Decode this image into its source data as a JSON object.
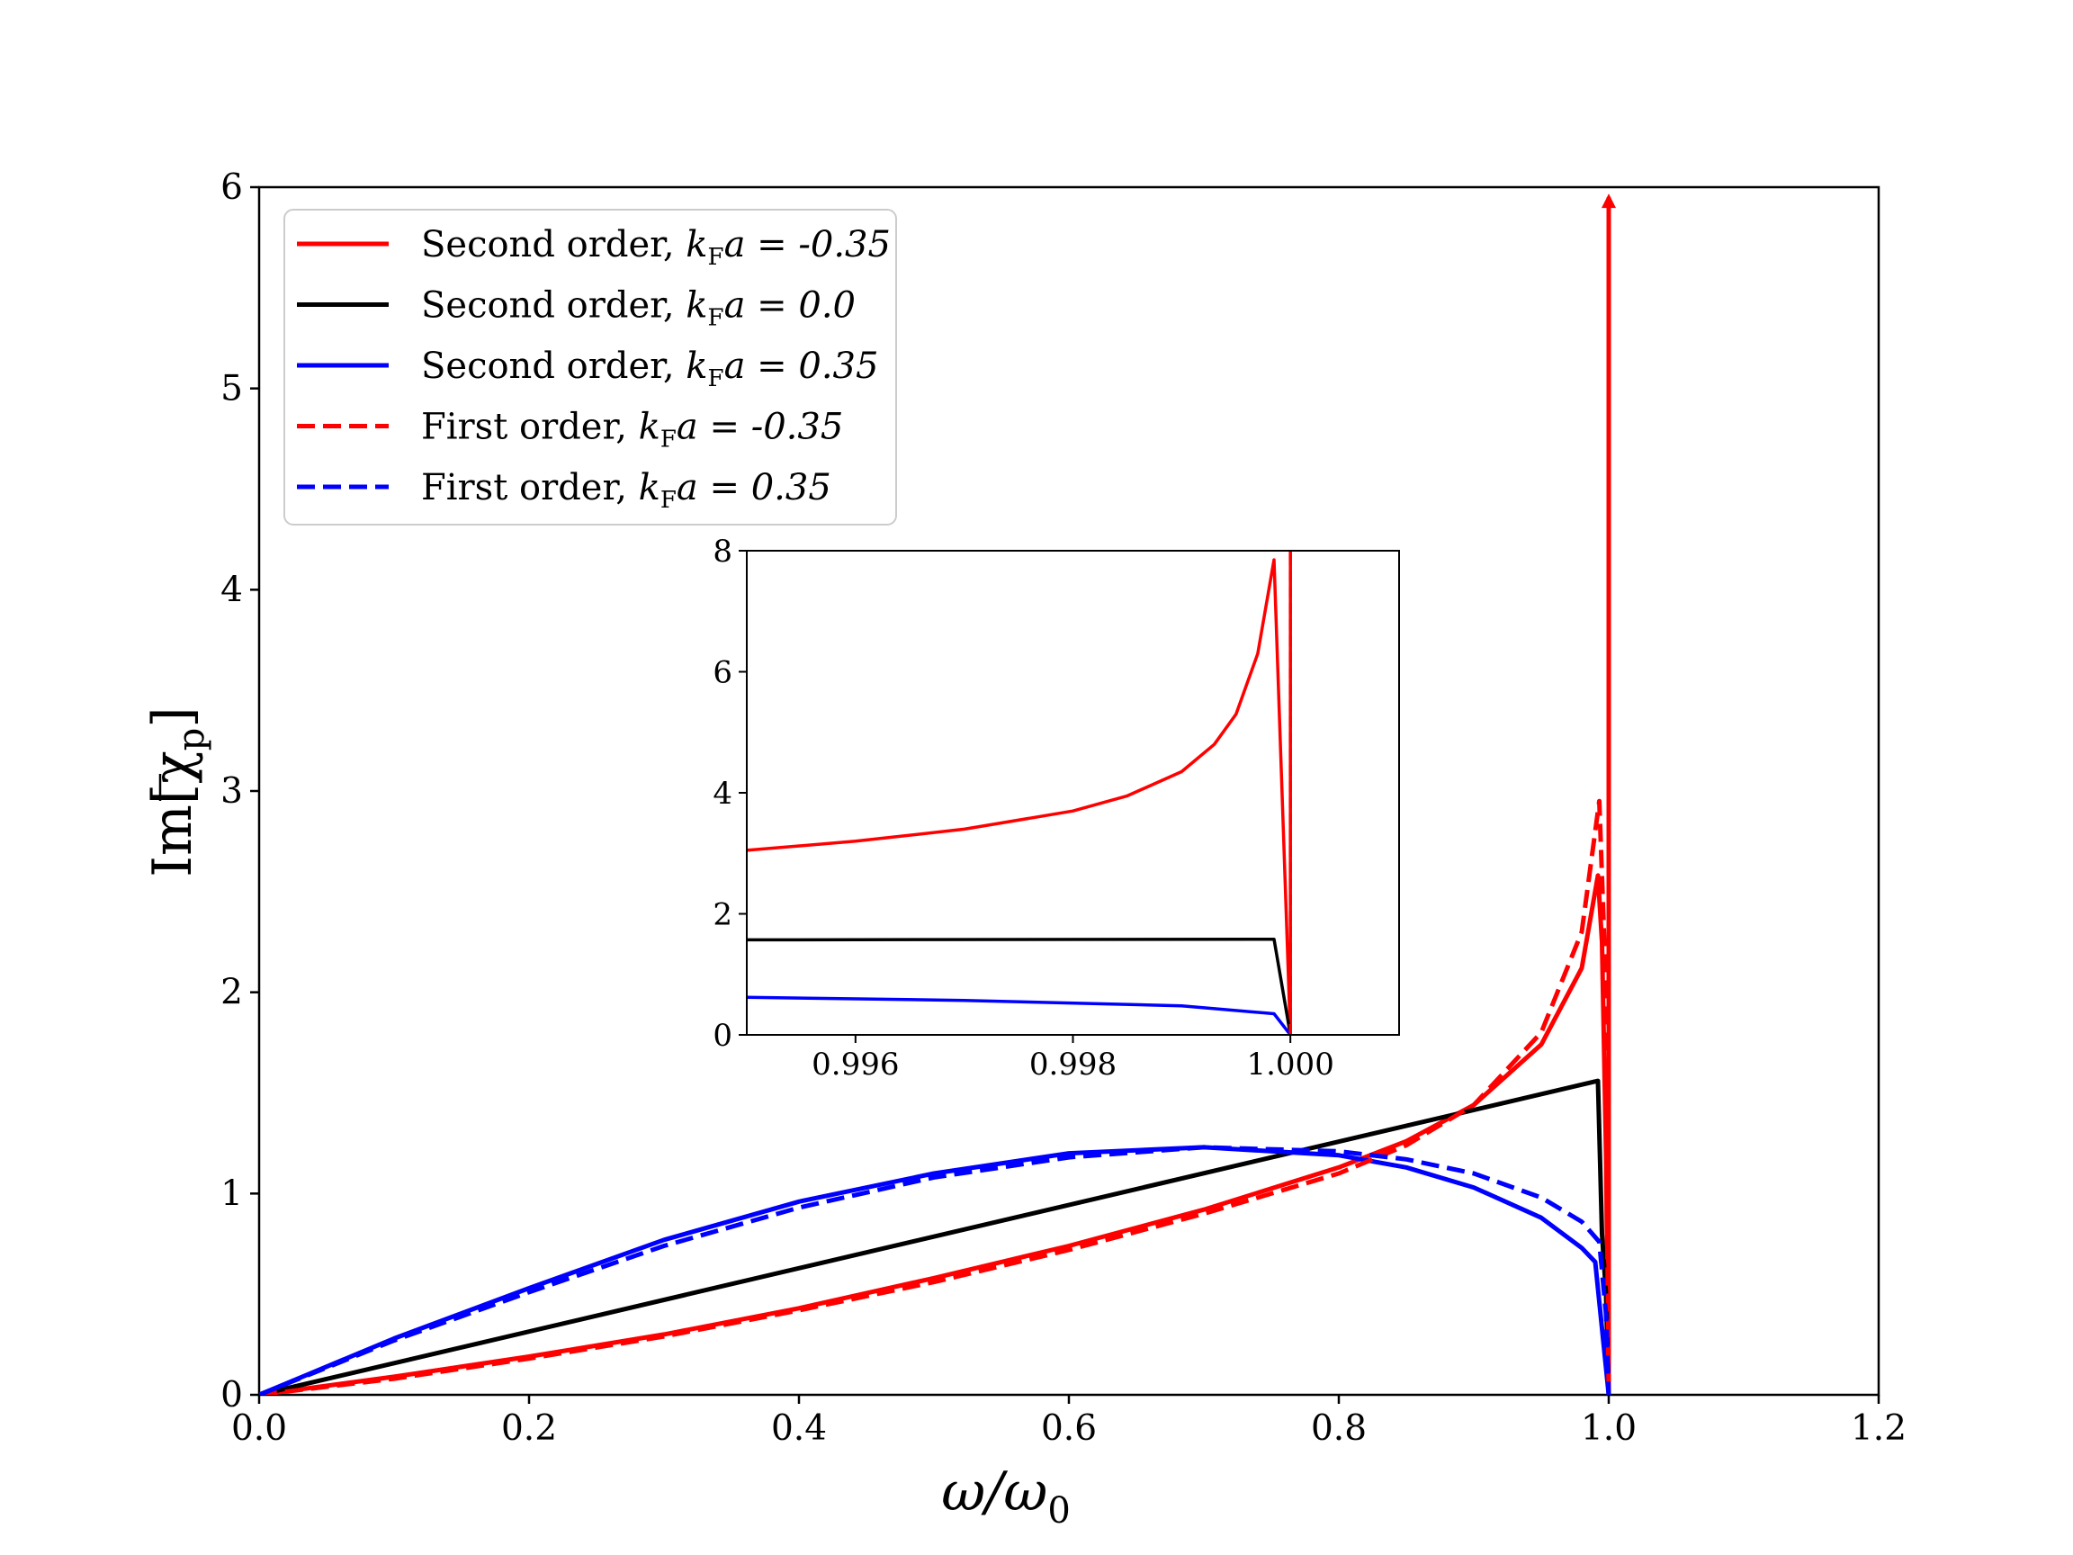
{
  "chart_data": [
    {
      "type": "line",
      "xlabel": "ω/ω",
      "xlabel_sub": "0",
      "ylabel": "Im[χ",
      "ylabel_sub": "p",
      "ylabel_close": "]",
      "xlim": [
        0.0,
        1.2
      ],
      "ylim": [
        0,
        6
      ],
      "xticks": [
        "0.0",
        "0.2",
        "0.4",
        "0.6",
        "0.8",
        "1.0",
        "1.2"
      ],
      "yticks": [
        "0",
        "1",
        "2",
        "3",
        "4",
        "5",
        "6"
      ],
      "grid": false,
      "legend_position": "upper-left",
      "series": [
        {
          "name": "Second order, k_Fa = -0.35",
          "legend_main": "Second order, ",
          "legend_k": "k",
          "legend_sub": "F",
          "legend_tail": "a = -0.35",
          "color": "#ff0000",
          "style": "solid",
          "points": [
            [
              0,
              0
            ],
            [
              0.1,
              0.09
            ],
            [
              0.2,
              0.19
            ],
            [
              0.3,
              0.3
            ],
            [
              0.4,
              0.43
            ],
            [
              0.5,
              0.58
            ],
            [
              0.6,
              0.74
            ],
            [
              0.7,
              0.92
            ],
            [
              0.8,
              1.13
            ],
            [
              0.85,
              1.26
            ],
            [
              0.9,
              1.44
            ],
            [
              0.95,
              1.74
            ],
            [
              0.98,
              2.12
            ],
            [
              0.992,
              2.58
            ],
            [
              0.995,
              2.25
            ],
            [
              0.998,
              1.2
            ],
            [
              1.0,
              0.0
            ],
            [
              1.0,
              5.95
            ]
          ]
        },
        {
          "name": "Second order, k_Fa = 0.0",
          "legend_main": "Second order, ",
          "legend_k": "k",
          "legend_sub": "F",
          "legend_tail": "a = 0.0",
          "color": "#000000",
          "style": "solid",
          "points": [
            [
              0,
              0
            ],
            [
              0.992,
              1.56
            ],
            [
              0.995,
              0.8
            ],
            [
              0.998,
              0.5
            ],
            [
              1.0,
              0.0
            ]
          ]
        },
        {
          "name": "Second order, k_Fa = 0.35",
          "legend_main": "Second order, ",
          "legend_k": "k",
          "legend_sub": "F",
          "legend_tail": "a = 0.35",
          "color": "#0000ff",
          "style": "solid",
          "points": [
            [
              0,
              0
            ],
            [
              0.1,
              0.28
            ],
            [
              0.2,
              0.53
            ],
            [
              0.3,
              0.77
            ],
            [
              0.4,
              0.96
            ],
            [
              0.5,
              1.1
            ],
            [
              0.6,
              1.2
            ],
            [
              0.7,
              1.23
            ],
            [
              0.8,
              1.19
            ],
            [
              0.85,
              1.13
            ],
            [
              0.9,
              1.03
            ],
            [
              0.95,
              0.88
            ],
            [
              0.98,
              0.73
            ],
            [
              0.99,
              0.66
            ],
            [
              1.0,
              0.0
            ]
          ]
        },
        {
          "name": "First order, k_Fa = -0.35",
          "legend_main": "First order, ",
          "legend_k": "k",
          "legend_sub": "F",
          "legend_tail": "a = -0.35",
          "color": "#ff0000",
          "style": "dashed",
          "points": [
            [
              0,
              0
            ],
            [
              0.1,
              0.08
            ],
            [
              0.2,
              0.18
            ],
            [
              0.3,
              0.29
            ],
            [
              0.4,
              0.42
            ],
            [
              0.5,
              0.56
            ],
            [
              0.6,
              0.72
            ],
            [
              0.7,
              0.9
            ],
            [
              0.8,
              1.1
            ],
            [
              0.85,
              1.24
            ],
            [
              0.9,
              1.44
            ],
            [
              0.95,
              1.8
            ],
            [
              0.98,
              2.3
            ],
            [
              0.993,
              2.95
            ],
            [
              0.997,
              2.2
            ],
            [
              1.0,
              0.0
            ]
          ]
        },
        {
          "name": "First order, k_Fa = 0.35",
          "legend_main": "First order, ",
          "legend_k": "k",
          "legend_sub": "F",
          "legend_tail": "a = 0.35",
          "color": "#0000ff",
          "style": "dashed",
          "points": [
            [
              0,
              0
            ],
            [
              0.1,
              0.27
            ],
            [
              0.2,
              0.51
            ],
            [
              0.3,
              0.74
            ],
            [
              0.4,
              0.93
            ],
            [
              0.5,
              1.08
            ],
            [
              0.6,
              1.18
            ],
            [
              0.7,
              1.23
            ],
            [
              0.8,
              1.21
            ],
            [
              0.85,
              1.17
            ],
            [
              0.9,
              1.1
            ],
            [
              0.95,
              0.98
            ],
            [
              0.98,
              0.86
            ],
            [
              0.993,
              0.76
            ],
            [
              0.998,
              0.4
            ],
            [
              1.0,
              0.0
            ]
          ]
        }
      ]
    },
    {
      "type": "line",
      "role": "inset",
      "xlim": [
        0.995,
        1.001
      ],
      "ylim": [
        0,
        8
      ],
      "xticks": [
        "0.996",
        "0.998",
        "1.000"
      ],
      "xtick_values": [
        0.996,
        0.998,
        1.0
      ],
      "yticks": [
        "0",
        "2",
        "4",
        "6",
        "8"
      ],
      "grid": false,
      "series": [
        {
          "color": "#ff0000",
          "style": "solid",
          "points": [
            [
              0.995,
              3.05
            ],
            [
              0.996,
              3.2
            ],
            [
              0.997,
              3.4
            ],
            [
              0.998,
              3.7
            ],
            [
              0.9985,
              3.95
            ],
            [
              0.999,
              4.35
            ],
            [
              0.9993,
              4.8
            ],
            [
              0.9995,
              5.3
            ],
            [
              0.9997,
              6.3
            ],
            [
              0.99985,
              7.85
            ],
            [
              1.0,
              0.0
            ],
            [
              1.0,
              8.0
            ]
          ]
        },
        {
          "color": "#000000",
          "style": "solid",
          "points": [
            [
              0.995,
              1.57
            ],
            [
              0.99985,
              1.58
            ],
            [
              1.0,
              0.0
            ]
          ]
        },
        {
          "color": "#0000ff",
          "style": "solid",
          "points": [
            [
              0.995,
              0.62
            ],
            [
              0.997,
              0.57
            ],
            [
              0.999,
              0.48
            ],
            [
              0.99985,
              0.35
            ],
            [
              1.0,
              0.0
            ]
          ]
        },
        {
          "color": "#ff0000",
          "style": "dashed",
          "points": [
            [
              1.0,
              0.0
            ],
            [
              1.0,
              8.0
            ]
          ]
        }
      ]
    }
  ]
}
